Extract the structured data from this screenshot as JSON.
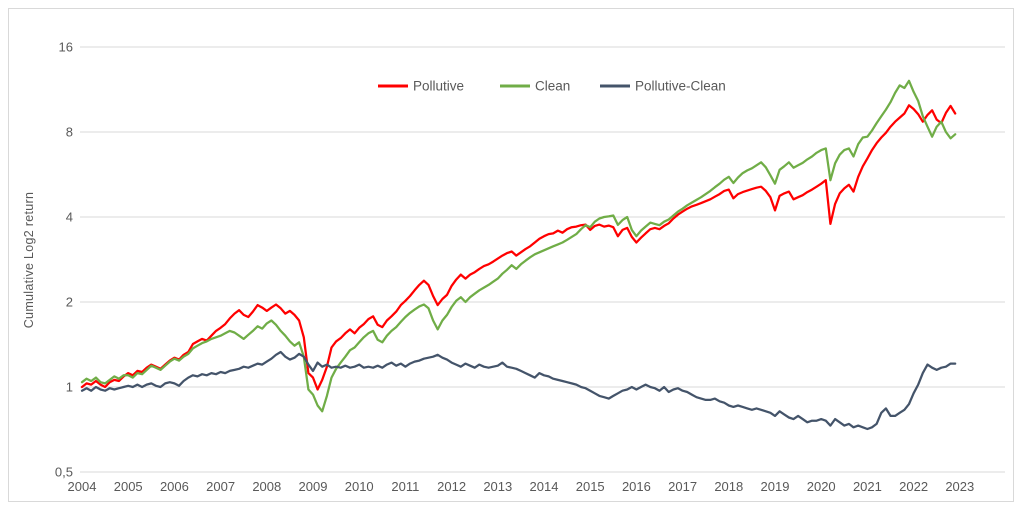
{
  "chart_data": {
    "type": "line",
    "title": "",
    "xlabel": "",
    "ylabel": "Cumulative Log2 return",
    "y_scale": "log2",
    "ylim": [
      0.5,
      16
    ],
    "y_ticks": [
      "16",
      "8",
      "4",
      "2",
      "1",
      "0,5"
    ],
    "y_tick_values": [
      16,
      8,
      4,
      2,
      1,
      0.5
    ],
    "x_ticks": [
      2004,
      2005,
      2006,
      2007,
      2008,
      2009,
      2010,
      2011,
      2012,
      2013,
      2014,
      2015,
      2016,
      2017,
      2018,
      2019,
      2020,
      2021,
      2022,
      2023
    ],
    "grid": "horizontal",
    "legend_position": "top-center",
    "x_start": 2004.0,
    "x_step": 0.1,
    "series": [
      {
        "name": "Pollutive",
        "color": "#FF0000",
        "values": [
          1.0,
          1.03,
          1.02,
          1.05,
          1.02,
          1.0,
          1.04,
          1.06,
          1.05,
          1.09,
          1.12,
          1.1,
          1.14,
          1.13,
          1.17,
          1.2,
          1.18,
          1.16,
          1.2,
          1.24,
          1.27,
          1.25,
          1.3,
          1.33,
          1.42,
          1.45,
          1.48,
          1.46,
          1.52,
          1.58,
          1.62,
          1.67,
          1.75,
          1.82,
          1.87,
          1.8,
          1.77,
          1.85,
          1.95,
          1.91,
          1.86,
          1.91,
          1.96,
          1.9,
          1.82,
          1.86,
          1.8,
          1.72,
          1.5,
          1.12,
          1.08,
          0.98,
          1.06,
          1.18,
          1.38,
          1.45,
          1.49,
          1.55,
          1.6,
          1.55,
          1.62,
          1.67,
          1.74,
          1.78,
          1.66,
          1.63,
          1.72,
          1.78,
          1.85,
          1.95,
          2.02,
          2.1,
          2.2,
          2.3,
          2.38,
          2.3,
          2.1,
          1.95,
          2.05,
          2.12,
          2.28,
          2.4,
          2.5,
          2.42,
          2.5,
          2.55,
          2.62,
          2.68,
          2.72,
          2.78,
          2.85,
          2.92,
          2.98,
          3.02,
          2.92,
          3.0,
          3.08,
          3.15,
          3.25,
          3.35,
          3.42,
          3.48,
          3.5,
          3.58,
          3.52,
          3.62,
          3.68,
          3.7,
          3.74,
          3.76,
          3.6,
          3.72,
          3.76,
          3.7,
          3.73,
          3.68,
          3.42,
          3.6,
          3.66,
          3.4,
          3.25,
          3.38,
          3.5,
          3.62,
          3.66,
          3.62,
          3.72,
          3.8,
          3.95,
          4.08,
          4.18,
          4.28,
          4.36,
          4.42,
          4.48,
          4.55,
          4.62,
          4.72,
          4.82,
          4.95,
          5.0,
          4.66,
          4.82,
          4.9,
          4.96,
          5.02,
          5.08,
          5.12,
          4.95,
          4.7,
          4.22,
          4.75,
          4.85,
          4.92,
          4.62,
          4.7,
          4.78,
          4.9,
          5.0,
          5.12,
          5.25,
          5.4,
          3.78,
          4.45,
          4.85,
          5.05,
          5.2,
          4.92,
          5.55,
          6.05,
          6.45,
          6.9,
          7.3,
          7.65,
          7.95,
          8.35,
          8.7,
          9.0,
          9.3,
          9.95,
          9.65,
          9.25,
          8.7,
          9.2,
          9.55,
          8.85,
          8.6,
          9.35,
          9.9,
          9.3
        ]
      },
      {
        "name": "Clean",
        "color": "#70AD47",
        "values": [
          1.04,
          1.07,
          1.05,
          1.08,
          1.04,
          1.03,
          1.06,
          1.09,
          1.07,
          1.1,
          1.1,
          1.08,
          1.12,
          1.11,
          1.15,
          1.19,
          1.17,
          1.15,
          1.19,
          1.23,
          1.26,
          1.24,
          1.28,
          1.31,
          1.37,
          1.4,
          1.43,
          1.45,
          1.48,
          1.5,
          1.52,
          1.55,
          1.58,
          1.56,
          1.52,
          1.48,
          1.53,
          1.58,
          1.64,
          1.61,
          1.68,
          1.72,
          1.66,
          1.58,
          1.52,
          1.45,
          1.4,
          1.44,
          1.28,
          0.98,
          0.94,
          0.86,
          0.82,
          0.93,
          1.08,
          1.16,
          1.22,
          1.28,
          1.35,
          1.38,
          1.44,
          1.5,
          1.55,
          1.58,
          1.47,
          1.44,
          1.52,
          1.58,
          1.63,
          1.7,
          1.77,
          1.83,
          1.88,
          1.93,
          1.96,
          1.9,
          1.72,
          1.6,
          1.72,
          1.8,
          1.92,
          2.02,
          2.08,
          2.0,
          2.08,
          2.14,
          2.2,
          2.25,
          2.3,
          2.36,
          2.42,
          2.52,
          2.6,
          2.7,
          2.62,
          2.72,
          2.8,
          2.88,
          2.95,
          3.0,
          3.05,
          3.1,
          3.15,
          3.2,
          3.25,
          3.32,
          3.4,
          3.48,
          3.62,
          3.74,
          3.68,
          3.85,
          3.95,
          4.0,
          4.02,
          4.05,
          3.75,
          3.9,
          4.0,
          3.6,
          3.42,
          3.58,
          3.7,
          3.82,
          3.78,
          3.74,
          3.85,
          3.92,
          4.05,
          4.18,
          4.28,
          4.4,
          4.5,
          4.6,
          4.7,
          4.82,
          4.95,
          5.1,
          5.25,
          5.42,
          5.55,
          5.28,
          5.52,
          5.72,
          5.85,
          5.95,
          6.1,
          6.25,
          6.0,
          5.62,
          5.25,
          5.88,
          6.05,
          6.25,
          5.98,
          6.1,
          6.22,
          6.4,
          6.55,
          6.75,
          6.9,
          7.0,
          5.4,
          6.2,
          6.65,
          6.9,
          7.0,
          6.55,
          7.25,
          7.65,
          7.7,
          8.1,
          8.6,
          9.1,
          9.6,
          10.2,
          11.0,
          11.7,
          11.45,
          12.15,
          11.1,
          10.3,
          9.1,
          8.35,
          7.7,
          8.35,
          8.7,
          8.0,
          7.6,
          7.85
        ]
      },
      {
        "name": "Pollutive-Clean",
        "color": "#44546A",
        "values": [
          0.97,
          0.99,
          0.97,
          1.0,
          0.98,
          0.97,
          0.99,
          0.98,
          0.99,
          1.0,
          1.01,
          1.0,
          1.02,
          1.0,
          1.02,
          1.03,
          1.01,
          1.0,
          1.03,
          1.04,
          1.03,
          1.01,
          1.05,
          1.08,
          1.1,
          1.09,
          1.11,
          1.1,
          1.12,
          1.11,
          1.13,
          1.12,
          1.14,
          1.15,
          1.16,
          1.18,
          1.17,
          1.19,
          1.21,
          1.2,
          1.23,
          1.26,
          1.3,
          1.33,
          1.28,
          1.25,
          1.27,
          1.31,
          1.28,
          1.2,
          1.14,
          1.22,
          1.18,
          1.2,
          1.17,
          1.18,
          1.17,
          1.19,
          1.17,
          1.18,
          1.2,
          1.17,
          1.18,
          1.17,
          1.19,
          1.17,
          1.2,
          1.22,
          1.19,
          1.21,
          1.18,
          1.21,
          1.23,
          1.24,
          1.26,
          1.27,
          1.28,
          1.3,
          1.27,
          1.25,
          1.22,
          1.2,
          1.18,
          1.21,
          1.19,
          1.17,
          1.2,
          1.18,
          1.17,
          1.18,
          1.19,
          1.22,
          1.18,
          1.17,
          1.16,
          1.14,
          1.12,
          1.1,
          1.08,
          1.12,
          1.1,
          1.09,
          1.07,
          1.06,
          1.05,
          1.04,
          1.03,
          1.02,
          1.0,
          0.99,
          0.97,
          0.95,
          0.93,
          0.92,
          0.91,
          0.93,
          0.95,
          0.97,
          0.98,
          1.0,
          0.98,
          1.0,
          1.02,
          1.0,
          0.99,
          0.97,
          1.0,
          0.96,
          0.98,
          0.99,
          0.97,
          0.96,
          0.94,
          0.92,
          0.91,
          0.9,
          0.9,
          0.91,
          0.89,
          0.88,
          0.86,
          0.85,
          0.86,
          0.85,
          0.84,
          0.83,
          0.84,
          0.83,
          0.82,
          0.81,
          0.79,
          0.82,
          0.8,
          0.78,
          0.77,
          0.79,
          0.77,
          0.75,
          0.76,
          0.76,
          0.77,
          0.76,
          0.73,
          0.77,
          0.75,
          0.73,
          0.74,
          0.72,
          0.73,
          0.72,
          0.71,
          0.72,
          0.74,
          0.81,
          0.84,
          0.79,
          0.79,
          0.81,
          0.83,
          0.87,
          0.95,
          1.02,
          1.12,
          1.2,
          1.17,
          1.15,
          1.17,
          1.18,
          1.21,
          1.21
        ]
      }
    ]
  },
  "colors": {
    "background": "#FFFFFF",
    "grid": "#D9D9D9",
    "frame_border": "#D9D9D9",
    "axis_text": "#595959"
  }
}
